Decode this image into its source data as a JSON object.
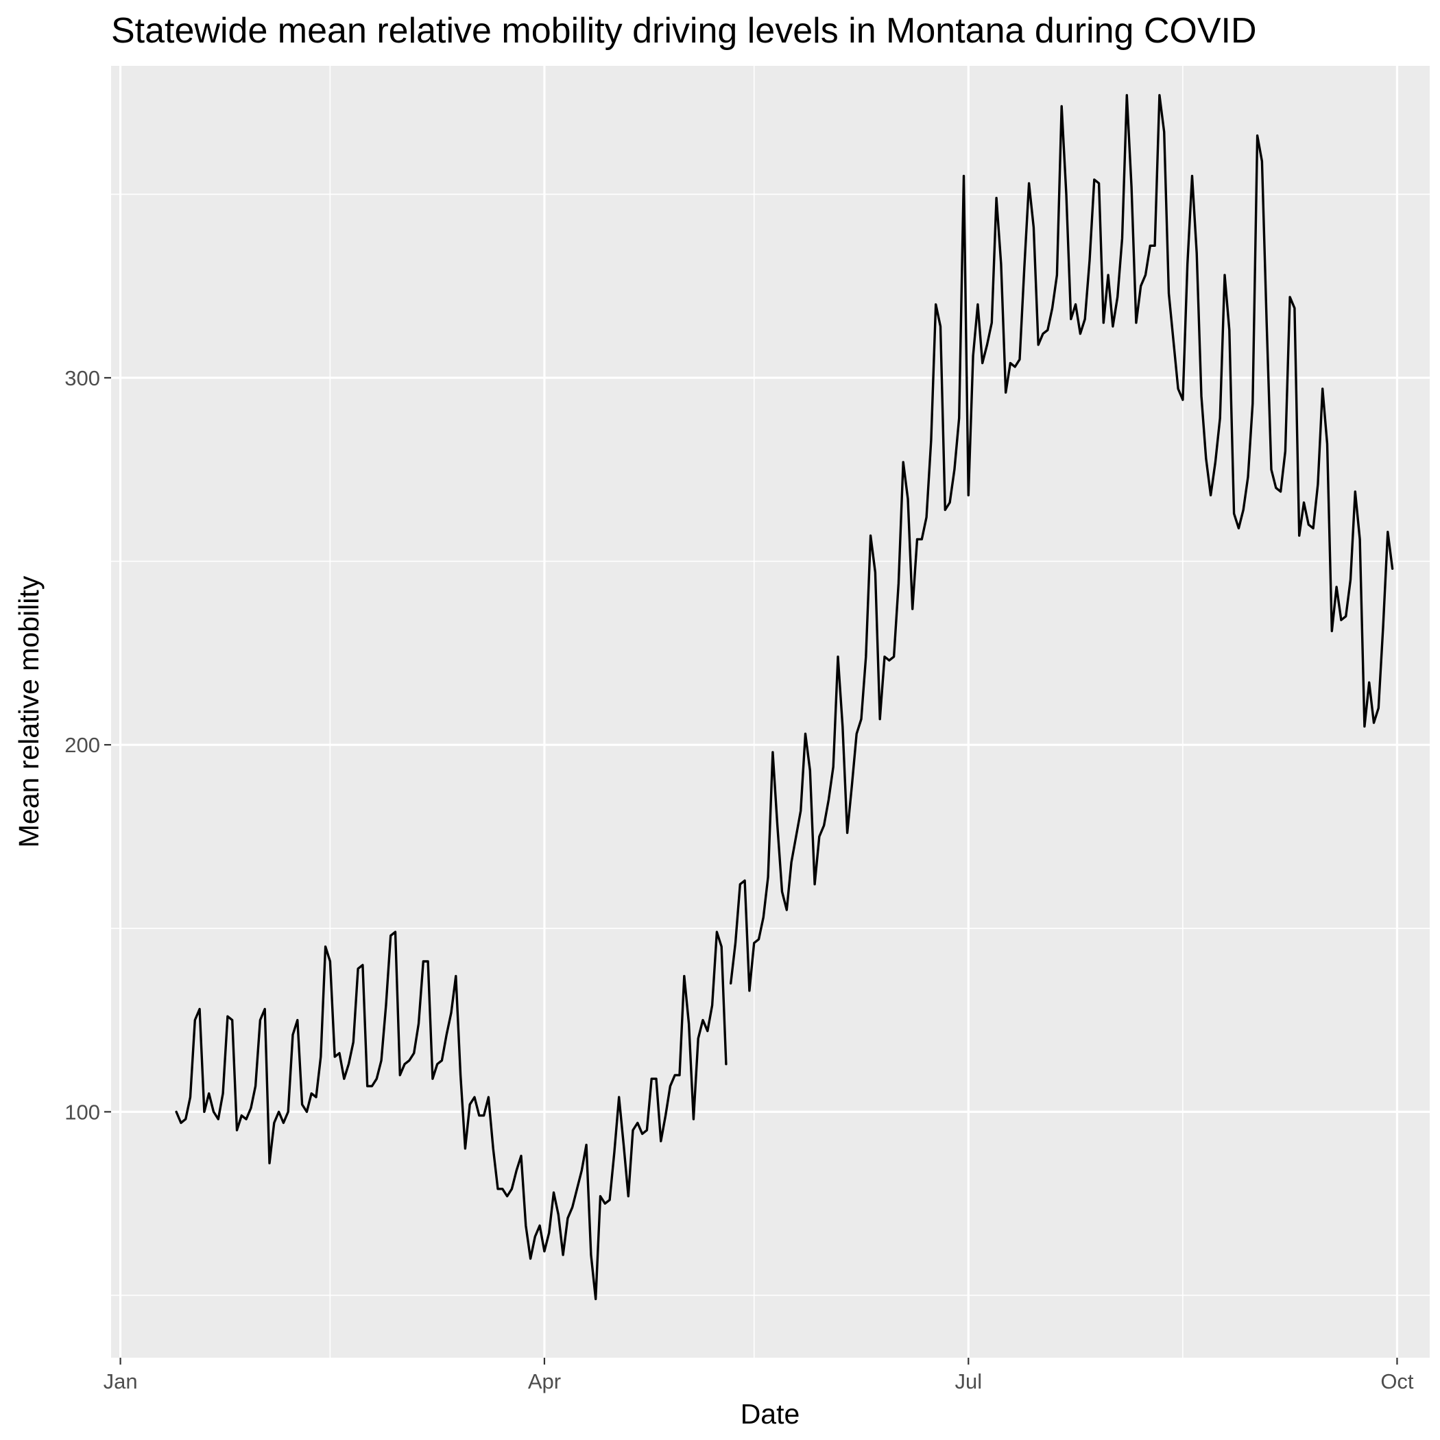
{
  "chart_data": {
    "type": "line",
    "title": "Statewide mean relative mobility driving levels in Montana during COVID",
    "xlabel": "Date",
    "ylabel": "Mean relative mobility",
    "x_start": "2020-01-13",
    "x_ticks": [
      {
        "date": "2020-01-01",
        "label": "Jan"
      },
      {
        "date": "2020-04-01",
        "label": "Apr"
      },
      {
        "date": "2020-07-01",
        "label": "Jul"
      },
      {
        "date": "2020-10-01",
        "label": "Oct"
      }
    ],
    "x_minor_ticks": [
      "2020-02-15",
      "2020-05-16",
      "2020-08-16"
    ],
    "xlim": [
      "2019-12-30",
      "2020-10-08"
    ],
    "y_ticks": [
      100,
      200,
      300
    ],
    "y_minor_ticks": [
      50,
      150,
      250,
      350
    ],
    "ylim": [
      33,
      385
    ],
    "grid": true,
    "legend": "none",
    "series": [
      {
        "color": "#000000",
        "values": [
          [
            100,
            97,
            98,
            104,
            125,
            128,
            100,
            105,
            100,
            98,
            105,
            126,
            125,
            95,
            99,
            98,
            101,
            107,
            125,
            128,
            86,
            97,
            100,
            97,
            100,
            121,
            125,
            102,
            100,
            105,
            104,
            115,
            145,
            141,
            115,
            116,
            109,
            113,
            119,
            139,
            140,
            107,
            107,
            109,
            114,
            129,
            148,
            149,
            110,
            113,
            114,
            116,
            124,
            141,
            141,
            109,
            113,
            114,
            121,
            127,
            137,
            110,
            90,
            102,
            104,
            99,
            99,
            104,
            90,
            79,
            79,
            77,
            79,
            84,
            88,
            69,
            60,
            66,
            69,
            62,
            67,
            78,
            72,
            61,
            71,
            74,
            79,
            84,
            91,
            61,
            49,
            77,
            75,
            76,
            89,
            104,
            91,
            77,
            95,
            97,
            94,
            95,
            109,
            109,
            92,
            99,
            107,
            110,
            110,
            137,
            124,
            98,
            120,
            125,
            122,
            129,
            149,
            145,
            113
          ],
          [
            135,
            146,
            162,
            163,
            133,
            146,
            147,
            153,
            164,
            198,
            178,
            160,
            155,
            168,
            175,
            182,
            203,
            193,
            162,
            175,
            178,
            185,
            194,
            224,
            205,
            176,
            189,
            203,
            207,
            224,
            257,
            247,
            207,
            224,
            223,
            224,
            244,
            277,
            267,
            237,
            256,
            256,
            262,
            283,
            320,
            314,
            264,
            266,
            275,
            289,
            355,
            268,
            306,
            320,
            304,
            309,
            315,
            349,
            331,
            296,
            304,
            303,
            305,
            330,
            353,
            341,
            309,
            312,
            313,
            319,
            328,
            374,
            350,
            316,
            320,
            312,
            316,
            332,
            354,
            353,
            315,
            328,
            314,
            322,
            338,
            377,
            352,
            315,
            325,
            328,
            336,
            336,
            377,
            367,
            323,
            310,
            297,
            294,
            331,
            355,
            334,
            295,
            278,
            268,
            277,
            289,
            328,
            313,
            263,
            259,
            264,
            273,
            293,
            366,
            359,
            315,
            275,
            270,
            269,
            280,
            322,
            319,
            257,
            266,
            260,
            259,
            271,
            297,
            282,
            231,
            243,
            234,
            235,
            245,
            269,
            256,
            205,
            217,
            206,
            210,
            232,
            258,
            248
          ]
        ]
      }
    ]
  }
}
